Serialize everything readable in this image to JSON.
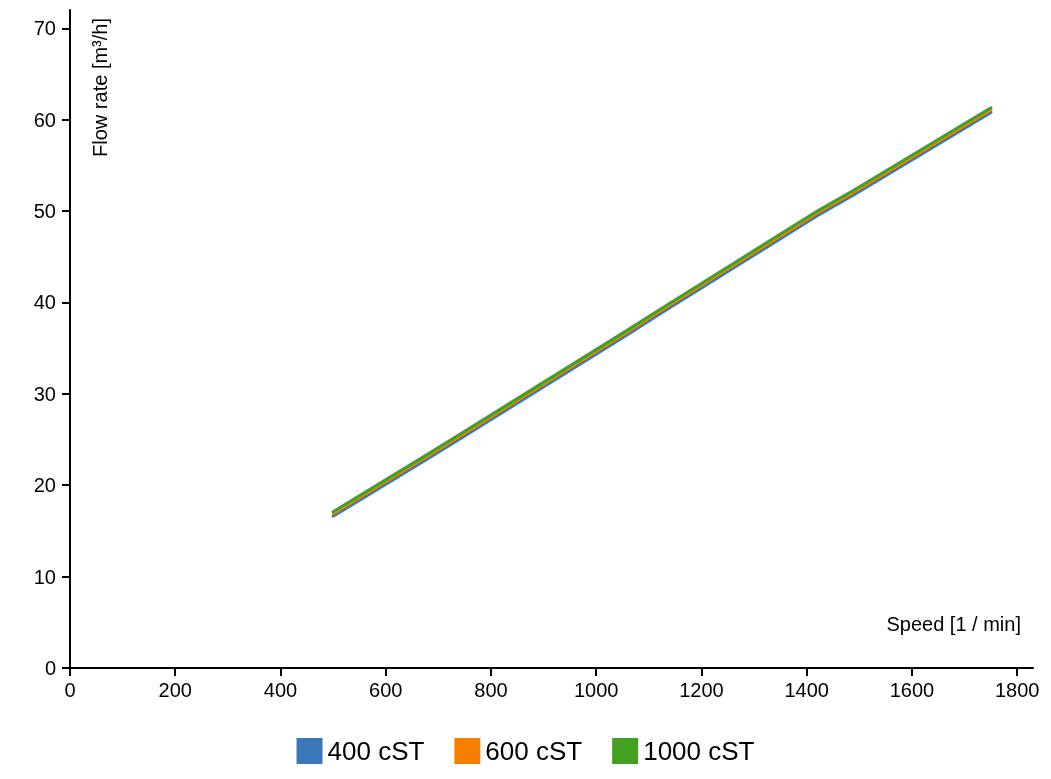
{
  "chart_data": {
    "type": "line",
    "xlabel": "Speed [1 / min]",
    "ylabel": "Flow rate [m³/h]",
    "x": [
      500,
      680,
      750,
      1060,
      1120,
      1420,
      1490,
      1750
    ],
    "series": [
      {
        "name": "400 cST",
        "color": "#3a78b9",
        "values": [
          16.6,
          22.9,
          25.4,
          36.5,
          38.7,
          49.5,
          51.8,
          60.8
        ]
      },
      {
        "name": "600 cST",
        "color": "#f77f00",
        "values": [
          16.9,
          23.2,
          25.7,
          36.8,
          39.0,
          49.8,
          52.1,
          61.1
        ]
      },
      {
        "name": "1000 cST",
        "color": "#44a021",
        "values": [
          17.1,
          23.4,
          25.9,
          37.0,
          39.2,
          50.0,
          52.3,
          61.3
        ]
      }
    ],
    "xlim": [
      0,
      1830
    ],
    "xticks": [
      0,
      200,
      400,
      600,
      800,
      1000,
      1200,
      1400,
      1600,
      1800
    ],
    "ylim": [
      0,
      72
    ],
    "yticks": [
      0,
      10,
      20,
      30,
      40,
      50,
      60,
      70
    ],
    "grid": false,
    "legend": "bottom",
    "marker": "none",
    "line_style": "solid"
  }
}
